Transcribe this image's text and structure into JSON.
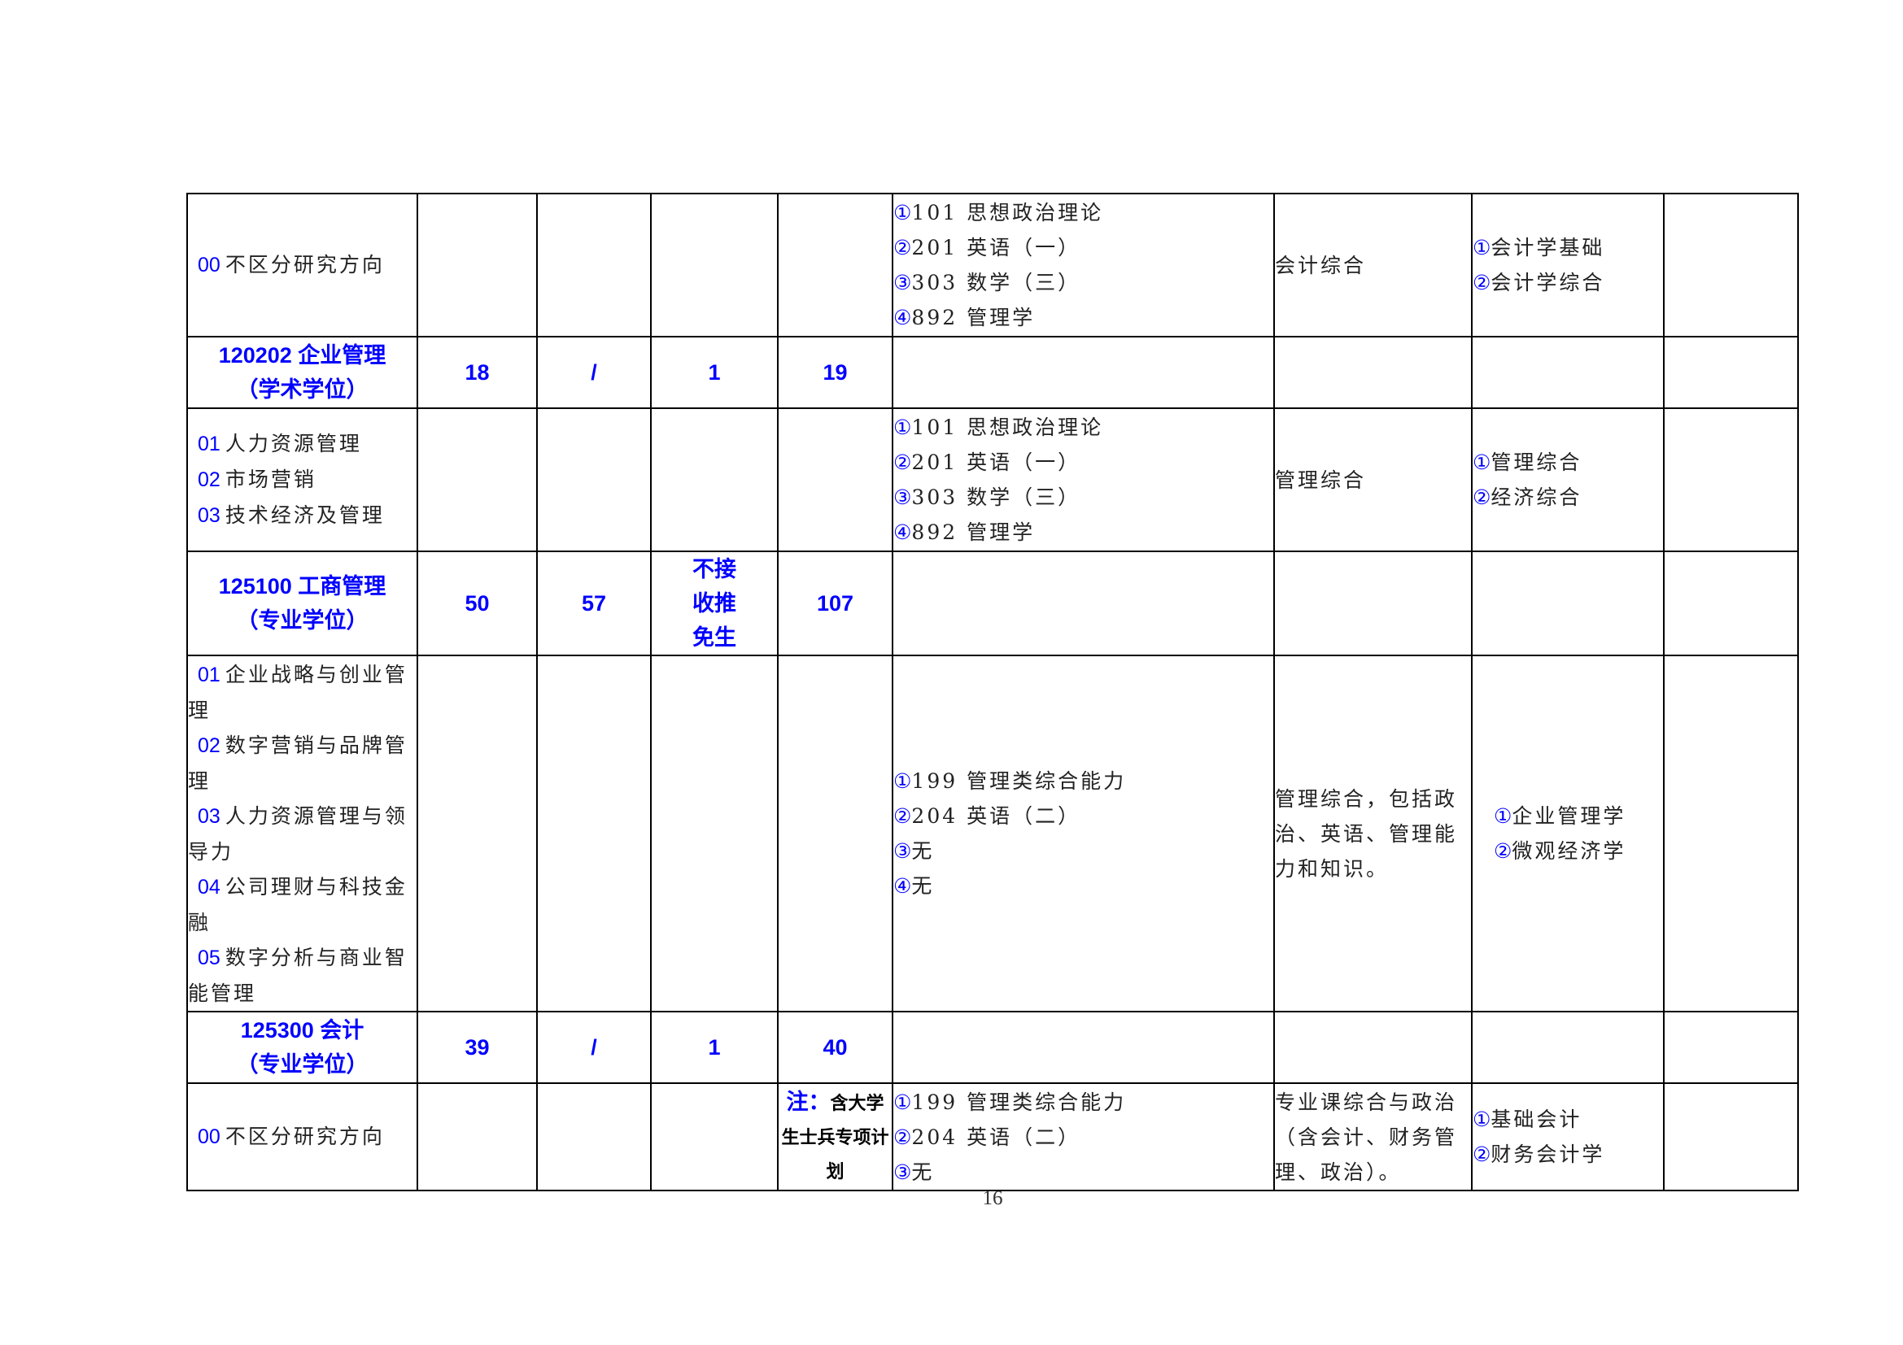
{
  "rows": [
    {
      "type": "detail",
      "directions": [
        {
          "code": "00",
          "name": " 不区分研究方向"
        }
      ],
      "exams": [
        {
          "num": "①",
          "text": "101 思想政治理论"
        },
        {
          "num": "②",
          "text": "201 英语（一）"
        },
        {
          "num": "③",
          "text": "303 数学（三）"
        },
        {
          "num": "④",
          "text": "892 管理学"
        }
      ],
      "retest": "会计综合",
      "extra": [
        {
          "num": "①",
          "text": "会计学基础"
        },
        {
          "num": "②",
          "text": "会计学综合"
        }
      ],
      "note": null
    },
    {
      "type": "major",
      "code": "120202",
      "name": "企业管理",
      "degree": "（学术学位）",
      "col1": "18",
      "col2": "/",
      "col3": "1",
      "total": "19"
    },
    {
      "type": "detail",
      "directions": [
        {
          "code": "01",
          "name": "人力资源管理"
        },
        {
          "code": "02",
          "name": "市场营销"
        },
        {
          "code": "03",
          "name": "技术经济及管理"
        }
      ],
      "exams": [
        {
          "num": "①",
          "text": "101 思想政治理论"
        },
        {
          "num": "②",
          "text": "201 英语（一）"
        },
        {
          "num": "③",
          "text": "303 数学（三）"
        },
        {
          "num": "④",
          "text": "892 管理学"
        }
      ],
      "retest": "管理综合",
      "extra": [
        {
          "num": "①",
          "text": "管理综合"
        },
        {
          "num": "②",
          "text": "经济综合"
        }
      ],
      "note": null
    },
    {
      "type": "major",
      "code": "125100",
      "name": "工商管理",
      "degree": "（专业学位）",
      "col1": "50",
      "col2": "57",
      "col3": "不接收推免生",
      "total": "107"
    },
    {
      "type": "detail",
      "directions": [
        {
          "code": "01",
          "name": "企业战略与创业管理"
        },
        {
          "code": "02",
          "name": "数字营销与品牌管理"
        },
        {
          "code": "03",
          "name": "人力资源管理与领导力"
        },
        {
          "code": "04",
          "name": "公司理财与科技金融"
        },
        {
          "code": "05",
          "name": "数字分析与商业智能管理"
        }
      ],
      "exams": [
        {
          "num": "①",
          "text": "199 管理类综合能力"
        },
        {
          "num": "②",
          "text": "204 英语（二）"
        },
        {
          "num": "③",
          "text": "无"
        },
        {
          "num": "④",
          "text": "无"
        }
      ],
      "retest": "管理综合，包括政治、英语、管理能力和知识。",
      "extra": [
        {
          "num": "①",
          "text": "企业管理学"
        },
        {
          "num": "②",
          "text": "微观经济学"
        }
      ],
      "note": null
    },
    {
      "type": "major",
      "code": "125300",
      "name": "会计",
      "degree": "（专业学位）",
      "col1": "39",
      "col2": "/",
      "col3": "1",
      "total": "40"
    },
    {
      "type": "detail",
      "directions": [
        {
          "code": "00",
          "name": " 不区分研究方向"
        }
      ],
      "exams": [
        {
          "num": "①",
          "text": "199 管理类综合能力"
        },
        {
          "num": "②",
          "text": "204 英语（二）"
        },
        {
          "num": "③",
          "text": "无"
        }
      ],
      "retest": "专业课综合与政治（含会计、财务管理、政治）。",
      "extra": [
        {
          "num": "①",
          "text": "基础会计"
        },
        {
          "num": "②",
          "text": "财务会计学"
        }
      ],
      "note": {
        "label": "注：",
        "text": "含大学生士兵专项计划"
      }
    }
  ],
  "page_number": "16",
  "colors": {
    "accent": "#0000ff",
    "text": "#222222"
  }
}
